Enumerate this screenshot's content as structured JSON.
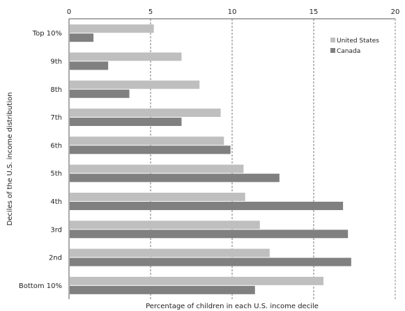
{
  "chart_data": {
    "type": "bar",
    "orientation": "horizontal",
    "categories": [
      "Top 10%",
      "9th",
      "8th",
      "7th",
      "6th",
      "5th",
      "4th",
      "3rd",
      "2nd",
      "Bottom 10%"
    ],
    "series": [
      {
        "name": "United States",
        "color": "#bfbfbf",
        "values": [
          5.2,
          6.9,
          8.0,
          9.3,
          9.5,
          10.7,
          10.8,
          11.7,
          12.3,
          15.6
        ]
      },
      {
        "name": "Canada",
        "color": "#808080",
        "values": [
          1.5,
          2.4,
          3.7,
          6.9,
          9.9,
          12.9,
          16.8,
          17.1,
          17.3,
          11.4
        ]
      }
    ],
    "xlabel": "Percentage of children in each U.S. income decile",
    "ylabel": "Deciles of the U.S. income distribution",
    "xlim": [
      0,
      20
    ],
    "xticks": [
      0,
      5,
      10,
      15,
      20
    ],
    "x_axis_position": "top",
    "grid": "vertical dashed",
    "legend_position": "top-right"
  }
}
